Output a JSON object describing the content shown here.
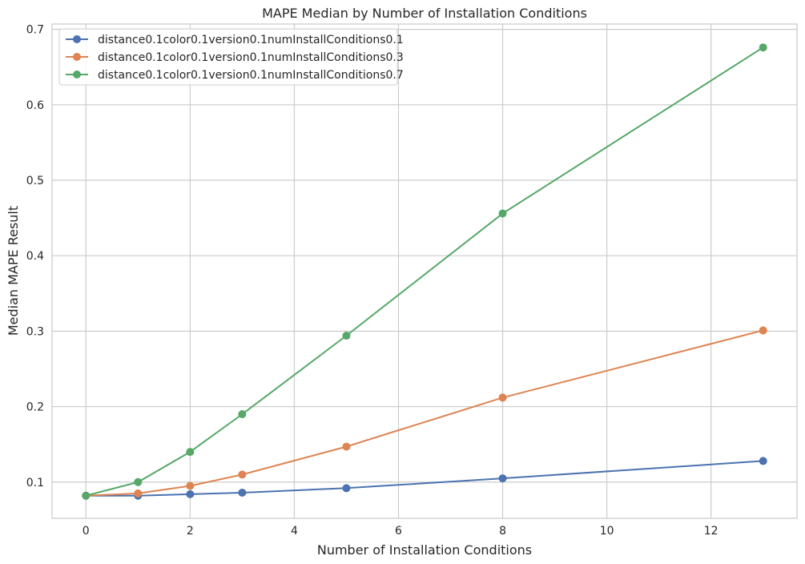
{
  "chart_data": {
    "type": "line",
    "title": "MAPE Median by Number of Installation Conditions",
    "xlabel": "Number of Installation Conditions",
    "ylabel": "Median MAPE Result",
    "xlim": [
      -0.65,
      13.65
    ],
    "ylim": [
      0.052,
      0.707
    ],
    "xticks": [
      0,
      2,
      4,
      6,
      8,
      10,
      12
    ],
    "yticks": [
      0.1,
      0.2,
      0.3,
      0.4,
      0.5,
      0.6,
      0.7
    ],
    "grid": true,
    "legend_position": "top-left",
    "x": [
      0,
      1,
      2,
      3,
      5,
      8,
      13
    ],
    "series": [
      {
        "name": "distance0.1color0.1version0.1numInstallConditions0.1",
        "color": "#4c72b0",
        "values": [
          0.082,
          0.082,
          0.084,
          0.086,
          0.092,
          0.105,
          0.128
        ]
      },
      {
        "name": "distance0.1color0.1version0.1numInstallConditions0.3",
        "color": "#dd8452",
        "values": [
          0.082,
          0.085,
          0.095,
          0.11,
          0.147,
          0.212,
          0.301
        ]
      },
      {
        "name": "distance0.1color0.1version0.1numInstallConditions0.7",
        "color": "#55a868",
        "values": [
          0.082,
          0.1,
          0.14,
          0.19,
          0.294,
          0.456,
          0.676
        ]
      }
    ]
  }
}
